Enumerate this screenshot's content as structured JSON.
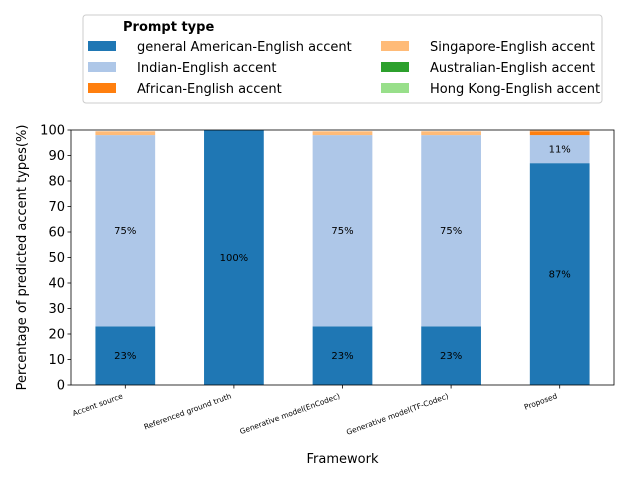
{
  "chart_data": {
    "type": "bar",
    "stacked": true,
    "title": "",
    "xlabel": "Framework",
    "ylabel": "Percentage of predicted accent types(%)",
    "ylim": [
      0,
      100
    ],
    "yticks": [
      0,
      10,
      20,
      30,
      40,
      50,
      60,
      70,
      80,
      90,
      100
    ],
    "grid": false,
    "legend": {
      "title": "Prompt type",
      "placement": "top-center",
      "columns": 2
    },
    "categories": [
      "Accent source",
      "Referenced ground truth",
      "Generative model(EnCodec)",
      "Generative model(TF-Codec)",
      "Proposed"
    ],
    "series": [
      {
        "name": "general American-English accent",
        "color": "#1f77b4",
        "values": [
          23,
          100,
          23,
          23,
          87
        ],
        "labels": [
          "23%",
          "100%",
          "23%",
          "23%",
          "87%"
        ]
      },
      {
        "name": "Indian-English accent",
        "color": "#aec7e8",
        "values": [
          75,
          0,
          75,
          75,
          11
        ],
        "labels": [
          "75%",
          "",
          "75%",
          "75%",
          "11%"
        ]
      },
      {
        "name": "African-English accent",
        "color": "#ff7f0e",
        "values": [
          0,
          0,
          0,
          0,
          1.5
        ],
        "labels": [
          "",
          "",
          "",
          "",
          ""
        ]
      },
      {
        "name": "Singapore-English accent",
        "color": "#ffbb78",
        "values": [
          1.5,
          0,
          1.5,
          1.5,
          0.5
        ],
        "labels": [
          "",
          "",
          "",
          "",
          ""
        ]
      },
      {
        "name": "Australian-English accent",
        "color": "#2ca02c",
        "values": [
          0,
          0,
          0,
          0,
          0
        ],
        "labels": [
          "",
          "",
          "",
          "",
          ""
        ]
      },
      {
        "name": "Hong Kong-English accent",
        "color": "#98df8a",
        "values": [
          0,
          0,
          0,
          0,
          0
        ],
        "labels": [
          "",
          "",
          "",
          "",
          ""
        ]
      }
    ]
  }
}
